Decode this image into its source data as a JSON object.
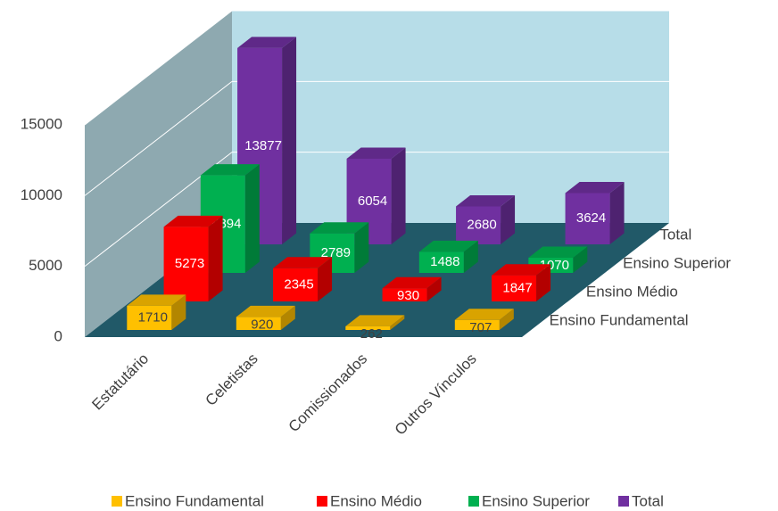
{
  "chart_data": {
    "type": "bar3d",
    "categories": [
      "Estatutário",
      "Celetistas",
      "Comissionados",
      "Outros Vínculos"
    ],
    "series": [
      {
        "name": "Ensino Fundamental",
        "color": "#ffc000",
        "values": [
          1710,
          920,
          262,
          707
        ]
      },
      {
        "name": "Ensino Médio",
        "color": "#ff0000",
        "values": [
          5273,
          2345,
          930,
          1847
        ]
      },
      {
        "name": "Ensino Superior",
        "color": "#00b050",
        "values": [
          6894,
          2789,
          1488,
          1070
        ]
      },
      {
        "name": "Total",
        "color": "#7030a0",
        "values": [
          13877,
          6054,
          2680,
          3624
        ]
      }
    ],
    "ylim": [
      0,
      15000
    ],
    "yticks": [
      0,
      5000,
      10000,
      15000
    ],
    "grid": true,
    "legend": "bottom"
  }
}
